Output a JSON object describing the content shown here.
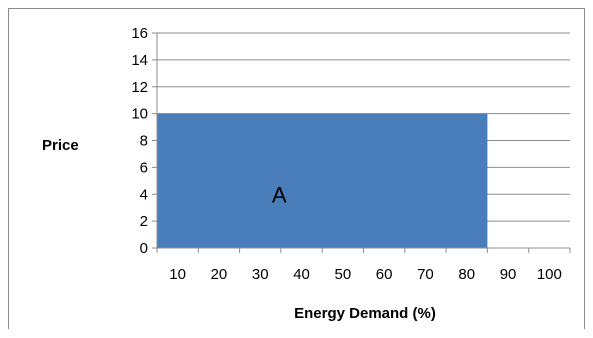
{
  "chart_data": {
    "type": "area",
    "title": "",
    "xlabel": "Energy Demand (%)",
    "ylabel": "Price",
    "xlim": [
      0,
      100
    ],
    "ylim": [
      0,
      16
    ],
    "x_ticks": [
      10,
      20,
      30,
      40,
      50,
      60,
      70,
      80,
      90,
      100
    ],
    "y_ticks": [
      0,
      2,
      4,
      6,
      8,
      10,
      12,
      14,
      16
    ],
    "grid": true,
    "legend": "none",
    "series": [
      {
        "x_start": 0,
        "x_end": 80,
        "y_start": 0,
        "y_end": 10,
        "color": "#4a7ebb"
      }
    ],
    "annotations": [
      {
        "text": "A",
        "x": 30,
        "y": 4
      }
    ]
  }
}
